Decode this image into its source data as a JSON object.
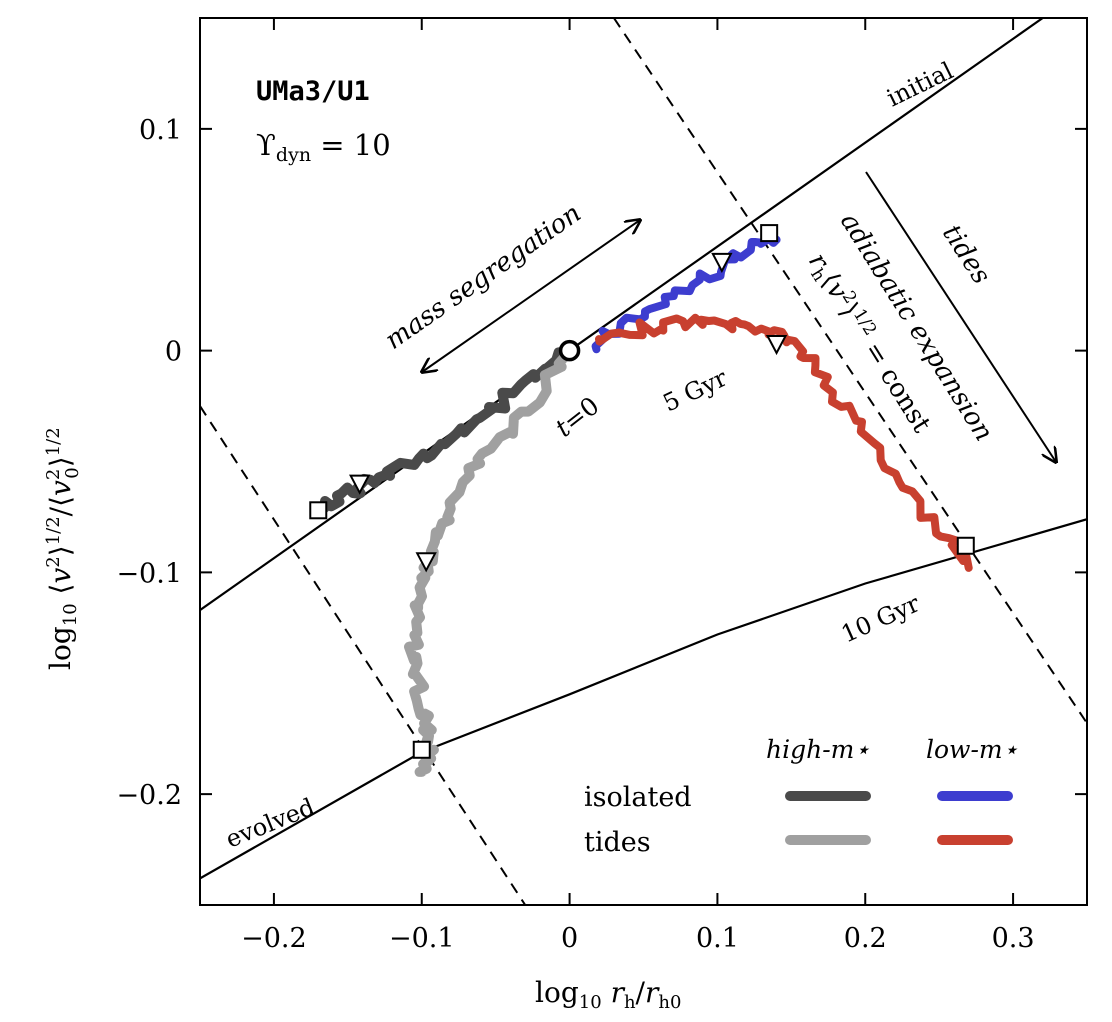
{
  "chart_data": {
    "type": "line",
    "title": "UMa3/U1",
    "subtitle": "ϒdyn = 10",
    "xlabel": "log10 rh/rh0",
    "ylabel": "log10 ⟨v²⟩^1/2/⟨v0²⟩^1/2",
    "xlim": [
      -0.25,
      0.35
    ],
    "ylim": [
      -0.25,
      0.15
    ],
    "xticks": [
      -0.2,
      -0.1,
      0,
      0.1,
      0.2,
      0.3
    ],
    "xtick_labels": [
      "−0.2",
      "−0.1",
      "0",
      "0.1",
      "0.2",
      "0.3"
    ],
    "yticks": [
      -0.2,
      -0.1,
      0,
      0.1
    ],
    "ytick_labels": [
      "−0.2",
      "−0.1",
      "0",
      "0.1"
    ],
    "grid": false,
    "legend": {
      "placement": "bottom-right",
      "col_headers": [
        "high-m⋆",
        "low-m⋆"
      ],
      "row_labels": [
        "isolated",
        "tides"
      ]
    },
    "series": [
      {
        "name": "isolated high-m⋆",
        "color": "#4a4a4a",
        "x": [
          0.0,
          -0.03,
          -0.06,
          -0.09,
          -0.12,
          -0.14,
          -0.155,
          -0.17
        ],
        "y": [
          0.0,
          -0.015,
          -0.03,
          -0.045,
          -0.055,
          -0.06,
          -0.066,
          -0.072
        ]
      },
      {
        "name": "tides high-m⋆",
        "color": "#a0a0a0",
        "x": [
          0.0,
          -0.03,
          -0.06,
          -0.08,
          -0.09,
          -0.1,
          -0.105,
          -0.105,
          -0.1,
          -0.095,
          -0.095,
          -0.1
        ],
        "y": [
          0.0,
          -0.03,
          -0.05,
          -0.07,
          -0.09,
          -0.1,
          -0.12,
          -0.14,
          -0.16,
          -0.175,
          -0.185,
          -0.19
        ]
      },
      {
        "name": "isolated low-m⋆",
        "color": "#3d3dcf",
        "x": [
          0.015,
          0.04,
          0.07,
          0.1,
          0.12,
          0.14
        ],
        "y": [
          0.003,
          0.013,
          0.025,
          0.036,
          0.046,
          0.05
        ]
      },
      {
        "name": "tides low-m⋆",
        "color": "#c8402f",
        "x": [
          0.02,
          0.05,
          0.08,
          0.11,
          0.13,
          0.15,
          0.17,
          0.19,
          0.22,
          0.25,
          0.27
        ],
        "y": [
          0.003,
          0.01,
          0.013,
          0.012,
          0.01,
          0.005,
          -0.01,
          -0.03,
          -0.055,
          -0.08,
          -0.098
        ]
      }
    ],
    "markers": {
      "start": {
        "x": 0.0,
        "y": 0.0
      },
      "triangles": [
        [
          -0.142,
          -0.06
        ],
        [
          -0.097,
          -0.095
        ],
        [
          0.103,
          0.04
        ],
        [
          0.14,
          0.003
        ]
      ],
      "squares": [
        [
          -0.17,
          -0.072
        ],
        [
          -0.1,
          -0.18
        ],
        [
          0.135,
          0.053
        ],
        [
          0.268,
          -0.088
        ]
      ]
    },
    "reference_lines": {
      "initial": {
        "x": [
          -0.25,
          0.32
        ],
        "y": [
          -0.117,
          0.15
        ]
      },
      "evolved": {
        "x": [
          -0.25,
          -0.1,
          0.0,
          0.1,
          0.2,
          0.35
        ],
        "y": [
          -0.238,
          -0.181,
          -0.155,
          -0.128,
          -0.105,
          -0.076
        ]
      },
      "dashed_left": {
        "x": [
          -0.25,
          -0.03
        ],
        "y": [
          -0.025,
          -0.25
        ]
      },
      "dashed_right": {
        "x": [
          0.03,
          0.35
        ],
        "y": [
          0.15,
          -0.168
        ]
      }
    },
    "annotations": {
      "initial": "initial",
      "evolved": "evolved",
      "ten_gyr": "10 Gyr",
      "five_gyr": "5 Gyr",
      "t0_var": "t",
      "t0_eq": "=0",
      "mass_seg": "mass segregation",
      "adiabatic": "adiabatic expansion",
      "const_formula": "rh⟨v²⟩^1/2 = const",
      "tides": "tides"
    }
  }
}
